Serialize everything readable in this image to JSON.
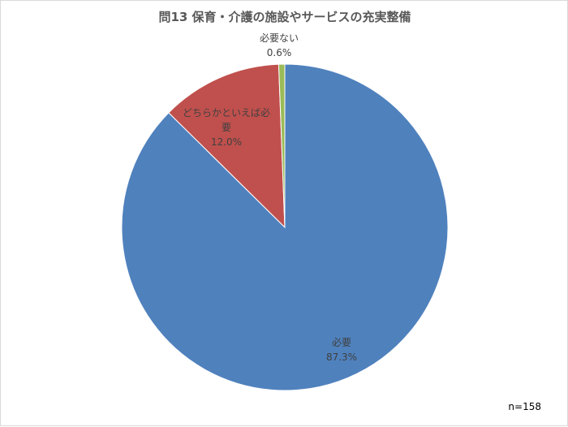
{
  "chart_data": {
    "type": "pie",
    "title": "問13 保育・介護の施設やサービスの充実整備",
    "slices": [
      {
        "label": "必要",
        "value": 87.3,
        "value_label": "87.3%",
        "color": "#4f81bd"
      },
      {
        "label_lines": [
          "どちらかといえば必",
          "要"
        ],
        "value": 12.0,
        "value_label": "12.0%",
        "color": "#c0504d"
      },
      {
        "label": "必要ない",
        "value": 0.6,
        "value_label": "0.6%",
        "color": "#9bbb59"
      }
    ],
    "start": "12 o'clock",
    "direction": "clockwise",
    "legend": "none"
  },
  "note": "n=158"
}
